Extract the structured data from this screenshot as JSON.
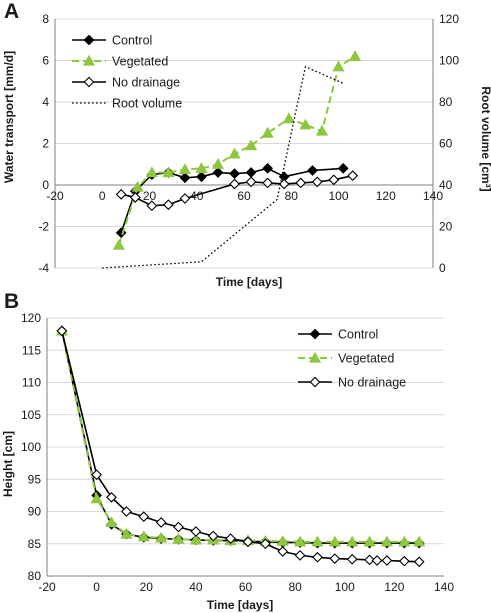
{
  "figure": {
    "colors": {
      "control": "#000000",
      "vegetated": "#8dc63f",
      "no_drainage": "#000000",
      "root_volume": "#000000",
      "gridline": "#d9d9d9",
      "axis": "#7f7f7f"
    }
  },
  "chart_data": [
    {
      "panel_label": "A",
      "type": "line",
      "xlabel": "Time [days]",
      "ylabel": "Water transport [mm/d]",
      "y2label": "Root volume [cm³]",
      "xlim": [
        -20,
        140
      ],
      "ylim": [
        -4,
        8
      ],
      "y2lim": [
        0,
        120
      ],
      "xticks": [
        "-20",
        "0",
        "20",
        "40",
        "60",
        "80",
        "100",
        "120",
        "140"
      ],
      "yticks": [
        "-4",
        "-2",
        "0",
        "2",
        "4",
        "6",
        "8"
      ],
      "y2ticks": [
        "0",
        "20",
        "40",
        "60",
        "80",
        "100",
        "120"
      ],
      "grid": "horizontal",
      "legend_position": "top-left",
      "series": [
        {
          "name": "Control",
          "axis": "left",
          "line": "solid",
          "marker": "filled-diamond",
          "color": "#000000",
          "x": [
            8,
            14,
            21,
            28,
            35,
            42,
            49,
            56,
            63,
            70,
            77,
            89,
            102
          ],
          "y": [
            -2.3,
            -0.3,
            0.5,
            0.6,
            0.35,
            0.4,
            0.6,
            0.55,
            0.6,
            0.8,
            0.4,
            0.7,
            0.8
          ]
        },
        {
          "name": "Vegetated",
          "axis": "left",
          "line": "dashed",
          "marker": "filled-triangle",
          "color": "#8dc63f",
          "x": [
            7,
            15,
            21,
            28,
            35,
            42,
            49,
            56,
            63,
            70,
            79,
            86,
            93,
            100,
            107
          ],
          "y": [
            -2.9,
            -0.1,
            0.6,
            0.6,
            0.75,
            0.8,
            1.0,
            1.5,
            1.9,
            2.5,
            3.2,
            2.9,
            2.6,
            5.7,
            6.2
          ]
        },
        {
          "name": "No drainage",
          "axis": "left",
          "line": "solid",
          "marker": "open-diamond",
          "color": "#000000",
          "x": [
            8,
            14,
            21,
            28,
            35,
            56,
            63,
            70,
            77,
            84,
            91,
            98,
            106
          ],
          "y": [
            -0.45,
            -0.6,
            -1.0,
            -0.95,
            -0.65,
            0.05,
            0.15,
            0.1,
            0.05,
            0.1,
            0.15,
            0.25,
            0.45
          ]
        },
        {
          "name": "Root volume",
          "axis": "right",
          "line": "dotted",
          "marker": "none",
          "color": "#000000",
          "x": [
            0,
            42,
            74,
            86,
            102
          ],
          "y": [
            0,
            3,
            33,
            97,
            89
          ]
        }
      ]
    },
    {
      "panel_label": "B",
      "type": "line",
      "xlabel": "Time [days]",
      "ylabel": "Height [cm]",
      "xlim": [
        -20,
        140
      ],
      "ylim": [
        80,
        120
      ],
      "xticks": [
        "-20",
        "0",
        "20",
        "40",
        "60",
        "80",
        "100",
        "120",
        "140"
      ],
      "yticks": [
        "80",
        "85",
        "90",
        "95",
        "100",
        "105",
        "110",
        "115",
        "120"
      ],
      "grid": "horizontal",
      "legend_position": "top-right",
      "series": [
        {
          "name": "Control",
          "line": "solid",
          "marker": "filled-diamond",
          "color": "#000000",
          "x": [
            -14,
            0,
            6,
            12,
            19,
            26,
            33,
            40,
            47,
            54,
            61,
            68,
            75,
            82,
            89,
            96,
            103,
            110,
            117,
            124,
            130
          ],
          "y": [
            118,
            92.5,
            88,
            86.5,
            86,
            85.8,
            85.7,
            85.6,
            85.5,
            85.5,
            85.4,
            85.3,
            85.2,
            85.2,
            85.1,
            85.1,
            85.1,
            85.1,
            85.1,
            85.1,
            85.1
          ]
        },
        {
          "name": "Vegetated",
          "line": "dashed",
          "marker": "filled-triangle",
          "color": "#8dc63f",
          "x": [
            -14,
            0,
            6,
            12,
            19,
            26,
            33,
            40,
            47,
            54,
            61,
            68,
            75,
            82,
            89,
            96,
            103,
            110,
            117,
            124,
            130
          ],
          "y": [
            118,
            92,
            88.3,
            86.5,
            86.1,
            85.9,
            85.7,
            85.6,
            85.6,
            85.5,
            85.5,
            85.4,
            85.4,
            85.3,
            85.3,
            85.3,
            85.3,
            85.3,
            85.3,
            85.3,
            85.3
          ]
        },
        {
          "name": "No drainage",
          "line": "solid",
          "marker": "open-diamond",
          "color": "#000000",
          "x": [
            -14,
            0,
            6,
            12,
            19,
            26,
            33,
            40,
            47,
            54,
            61,
            68,
            75,
            82,
            89,
            96,
            103,
            110,
            113,
            117,
            124,
            130
          ],
          "y": [
            118,
            95.7,
            92.2,
            90,
            89.2,
            88.3,
            87.6,
            86.9,
            86.2,
            85.8,
            85.3,
            85.0,
            83.8,
            83.2,
            82.9,
            82.7,
            82.6,
            82.5,
            82.4,
            82.4,
            82.3,
            82.2
          ]
        }
      ]
    }
  ]
}
